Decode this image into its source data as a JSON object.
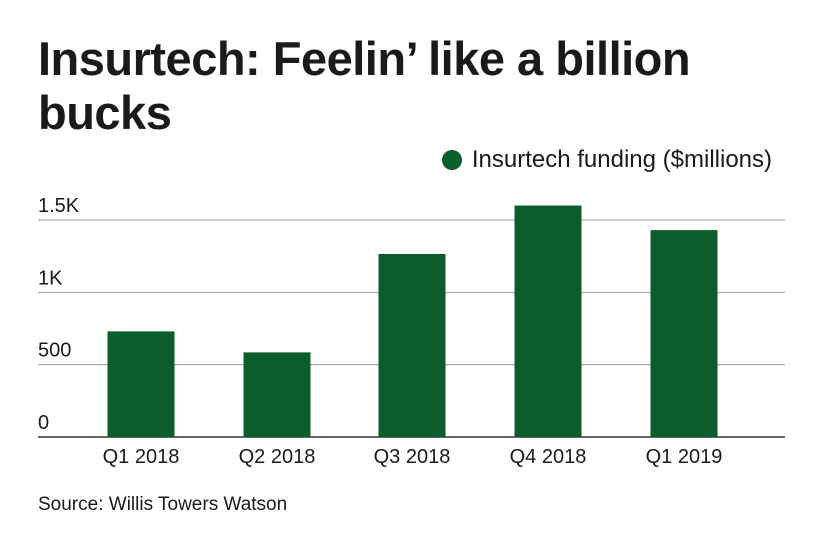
{
  "title": "Insurtech: Feelin’ like a billion bucks",
  "source": "Source: Willis Towers Watson",
  "colors": {
    "bar": "#0b5e2b",
    "grid": "#9a9a9a",
    "axis": "#333333",
    "text": "#1a1a1a"
  },
  "chart_data": {
    "type": "bar",
    "categories": [
      "Q1 2018",
      "Q2 2018",
      "Q3 2018",
      "Q4 2018",
      "Q1 2019"
    ],
    "series": [
      {
        "name": "Insurtech funding ($millions)",
        "values": [
          730,
          585,
          1265,
          1600,
          1430
        ]
      }
    ],
    "ylim": [
      0,
      1500
    ],
    "yticks": [
      0,
      500,
      1000,
      1500
    ],
    "ytick_labels": [
      "0",
      "500",
      "1K",
      "1.5K"
    ],
    "grid": true,
    "legend_position": "top-right"
  }
}
